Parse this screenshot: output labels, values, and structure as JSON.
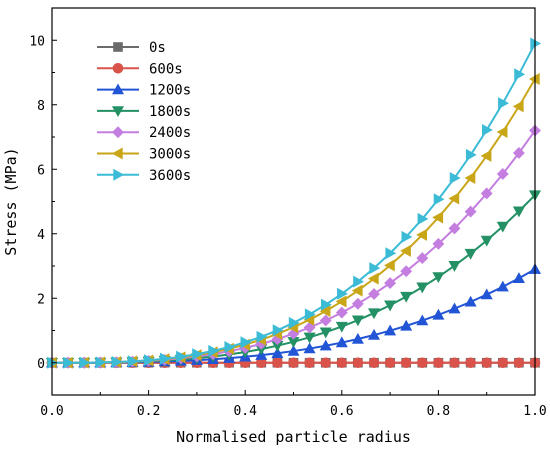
{
  "chart_data": {
    "type": "line",
    "xlabel": "Normalised particle radius",
    "ylabel": "Stress (MPa)",
    "xlim": [
      0.0,
      1.0
    ],
    "ylim": [
      -1.0,
      11.0
    ],
    "xticks": [
      "0.0",
      "0.2",
      "0.4",
      "0.6",
      "0.8",
      "1.0"
    ],
    "yticks": [
      "0",
      "2",
      "4",
      "6",
      "8",
      "10"
    ],
    "legend_position": "top-left",
    "grid": false,
    "x": [
      0.0,
      0.0333,
      0.0667,
      0.1,
      0.1333,
      0.1667,
      0.2,
      0.2333,
      0.2667,
      0.3,
      0.3333,
      0.3667,
      0.4,
      0.4333,
      0.4667,
      0.5,
      0.5333,
      0.5667,
      0.6,
      0.6333,
      0.6667,
      0.7,
      0.7333,
      0.7667,
      0.8,
      0.8333,
      0.8667,
      0.9,
      0.9333,
      0.9667,
      1.0
    ],
    "series": [
      {
        "name": "0s",
        "color": "#6b6b6b",
        "marker": "square",
        "peak": 0.0
      },
      {
        "name": "600s",
        "color": "#d9534a",
        "marker": "circle",
        "peak": 0.0
      },
      {
        "name": "1200s",
        "color": "#2255d6",
        "marker": "triangle-up",
        "peak": 2.9
      },
      {
        "name": "1800s",
        "color": "#239164",
        "marker": "triangle-down",
        "peak": 5.2
      },
      {
        "name": "2400s",
        "color": "#c47ee0",
        "marker": "diamond",
        "peak": 7.2
      },
      {
        "name": "3000s",
        "color": "#c9a618",
        "marker": "triangle-left",
        "peak": 8.8
      },
      {
        "name": "3600s",
        "color": "#3bbbd6",
        "marker": "triangle-right",
        "peak": 9.9
      }
    ]
  }
}
